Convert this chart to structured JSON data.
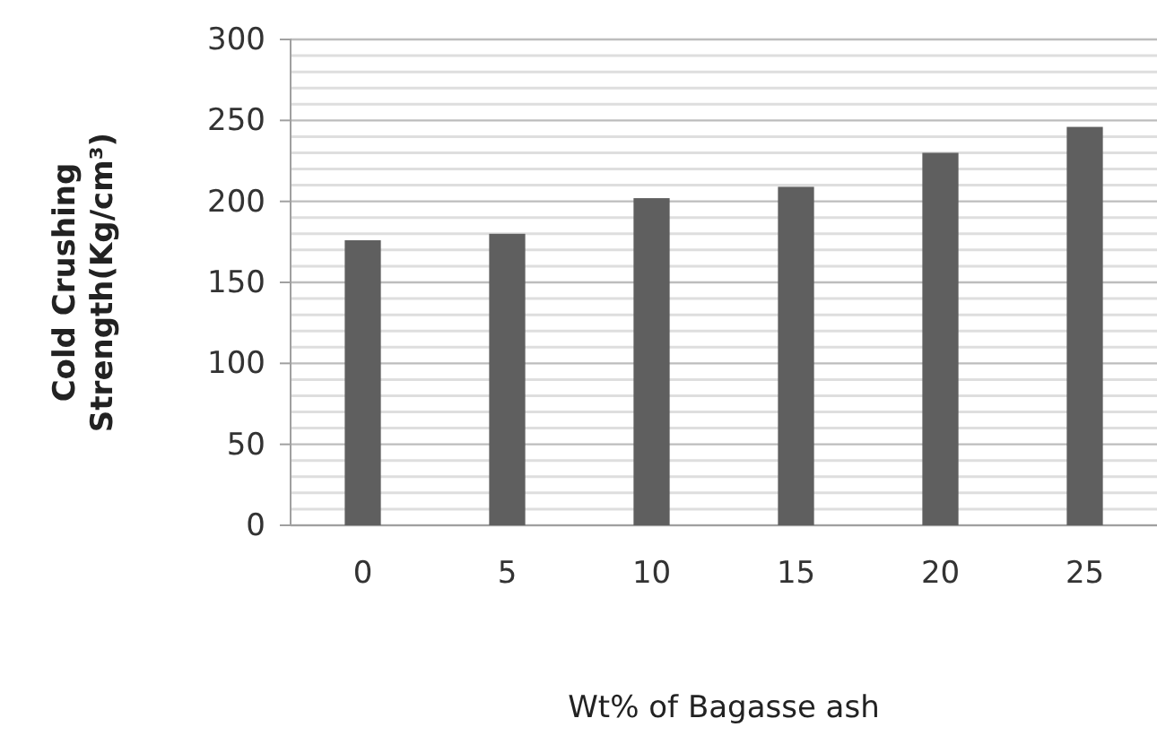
{
  "chart_data": {
    "type": "bar",
    "xlabel": "Wt% of Bagasse ash",
    "ylabel": "Cold Crushing Strength(Kg/cm³)",
    "categories": [
      "0",
      "5",
      "10",
      "15",
      "20",
      "25"
    ],
    "values": [
      176,
      180,
      202,
      209,
      230,
      246
    ],
    "color": "#5f5f5f",
    "ylim": [
      0,
      300
    ],
    "yticks": [
      0,
      {
        "value": 10,
        "label": null
      },
      {
        "value": 20,
        "label": null
      },
      {
        "value": 30,
        "label": null
      },
      {
        "value": 40,
        "label": null
      },
      50,
      {
        "value": 60,
        "label": null
      },
      {
        "value": 70,
        "label": null
      },
      {
        "value": 80,
        "label": null
      },
      {
        "value": 90,
        "label": null
      },
      100,
      {
        "value": 110,
        "label": null
      },
      {
        "value": 120,
        "label": null
      },
      {
        "value": 130,
        "label": null
      },
      {
        "value": 140,
        "label": null
      },
      150,
      {
        "value": 160,
        "label": null
      },
      {
        "value": 170,
        "label": null
      },
      {
        "value": 180,
        "label": null
      },
      {
        "value": 190,
        "label": null
      },
      200,
      {
        "value": 210,
        "label": null
      },
      {
        "value": 220,
        "label": null
      },
      {
        "value": 230,
        "label": null
      },
      {
        "value": 240,
        "label": null
      },
      250,
      {
        "value": 260,
        "label": null
      },
      {
        "value": 270,
        "label": null
      },
      {
        "value": 280,
        "label": null
      },
      {
        "value": 290,
        "label": null
      },
      300
    ],
    "grid": true
  }
}
